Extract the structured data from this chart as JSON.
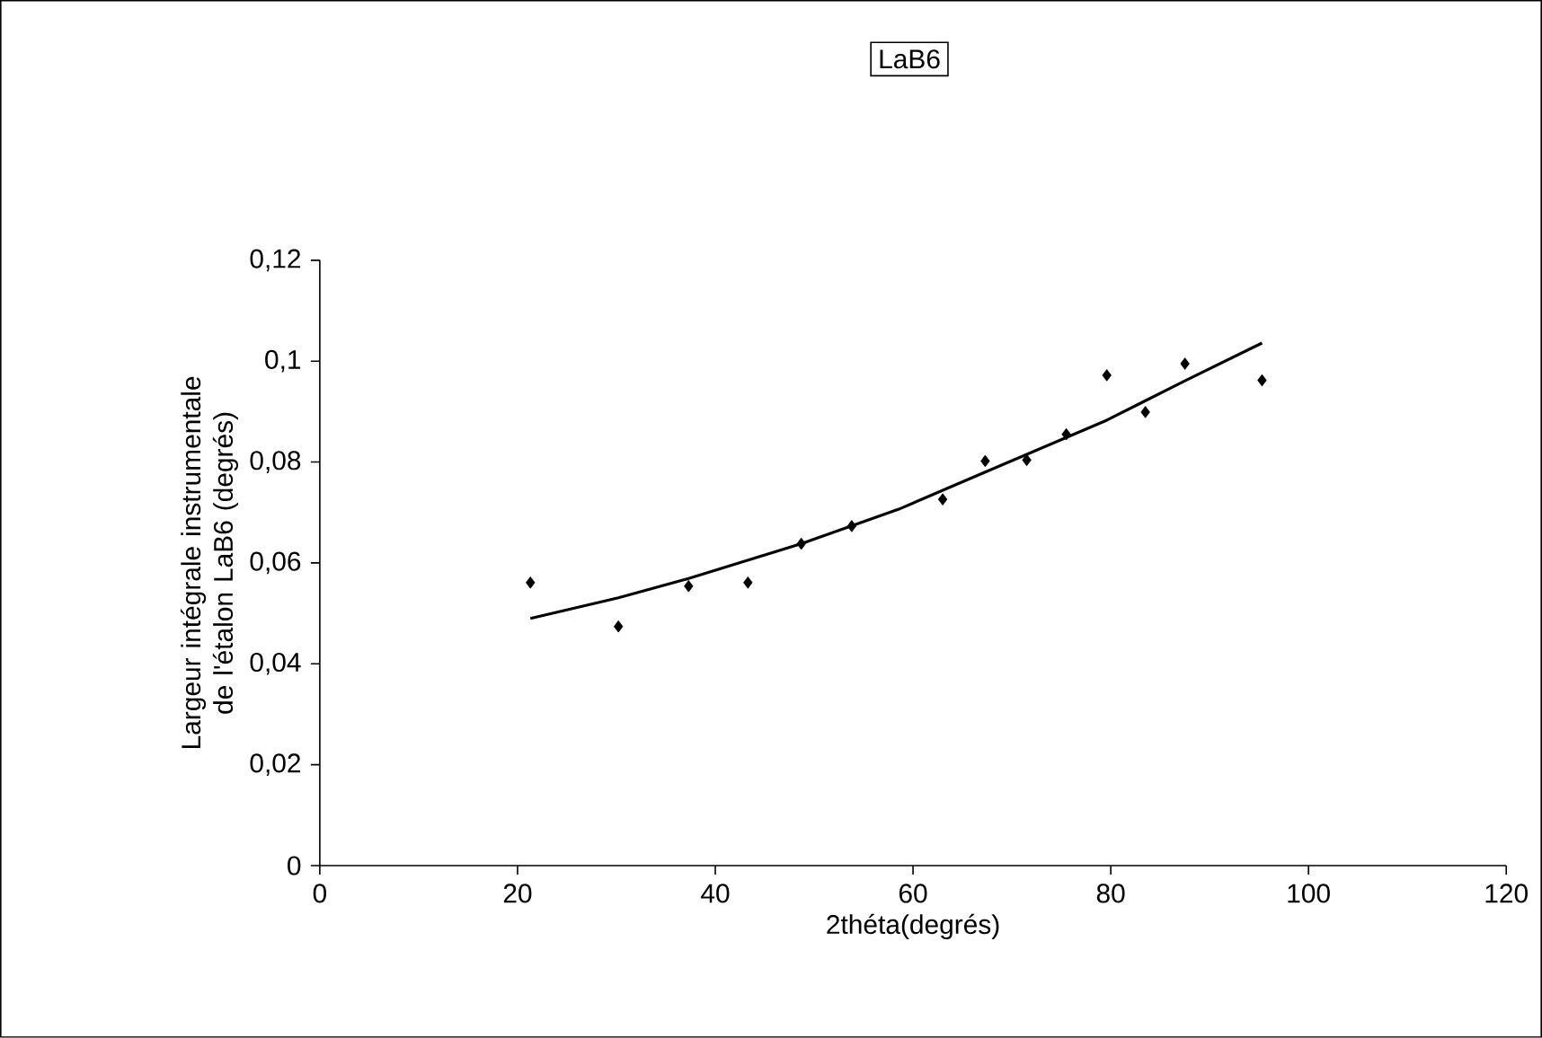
{
  "chart_data": {
    "type": "scatter",
    "title": "LaB6",
    "xlabel": "2théta(degrés)",
    "ylabel": "Largeur intégrale instrumentale de l'étalon LaB6 (degrés)",
    "xlim": [
      0,
      120
    ],
    "xticks": [
      0,
      20,
      40,
      60,
      80,
      100,
      120
    ],
    "ylim": [
      0,
      0.12
    ],
    "yticks": [
      0,
      {
        "value": 0.02,
        "label": "0,02"
      },
      {
        "value": 0.04,
        "label": "0,04"
      },
      {
        "value": 0.06,
        "label": "0,06"
      },
      {
        "value": 0.08,
        "label": "0,08"
      },
      {
        "value": 0.1,
        "label": "0,1"
      },
      {
        "value": 0.12,
        "label": "0,12"
      }
    ],
    "series": [
      {
        "marker": "diamond",
        "color": "#000000",
        "x": [
          21.3,
          30.2,
          37.3,
          43.3,
          48.7,
          53.8,
          63.0,
          67.3,
          71.5,
          75.5,
          79.6,
          83.5,
          87.5,
          95.3
        ],
        "values": [
          0.0561,
          0.0474,
          0.0554,
          0.0561,
          0.0638,
          0.0673,
          0.0726,
          0.0802,
          0.0804,
          0.0855,
          0.0972,
          0.0899,
          0.0995,
          0.0962
        ]
      },
      {
        "type": "line",
        "marker": "none",
        "line_style": "solid",
        "color": "#000000",
        "x": [
          21.3,
          30.2,
          37.3,
          48.7,
          58.5,
          67.3,
          79.6,
          87.5,
          95.3
        ],
        "values": [
          0.049,
          0.0531,
          0.0569,
          0.0638,
          0.0706,
          0.078,
          0.0883,
          0.0961,
          0.1036
        ]
      }
    ]
  }
}
